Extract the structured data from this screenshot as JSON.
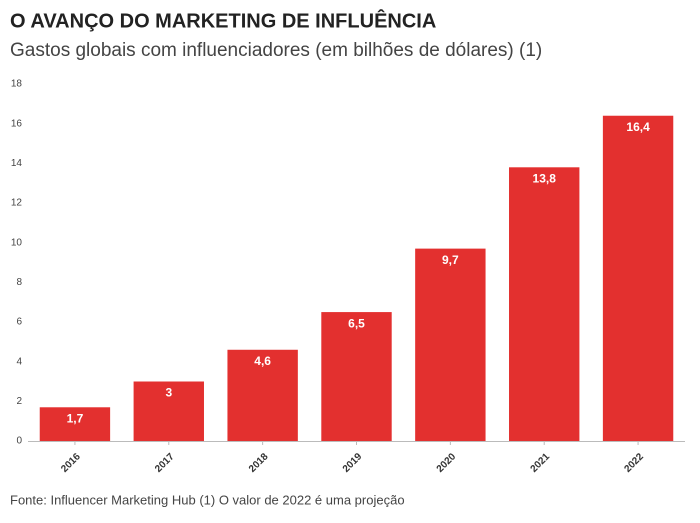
{
  "chart_data": {
    "type": "bar",
    "title": "O AVANÇO DO MARKETING DE INFLUÊNCIA",
    "subtitle": "Gastos globais com influenciadores (em bilhões de dólares) (1)",
    "source": "Fonte: Influencer Marketing Hub (1) O valor de 2022 é uma projeção",
    "categories": [
      "2016",
      "2017",
      "2018",
      "2019",
      "2020",
      "2021",
      "2022"
    ],
    "values": [
      1.7,
      3,
      4.6,
      6.5,
      9.7,
      13.8,
      16.4
    ],
    "value_labels": [
      "1,7",
      "3",
      "4,6",
      "6,5",
      "9,7",
      "13,8",
      "16,4"
    ],
    "color": "#e3302f",
    "ylim": [
      0,
      18
    ],
    "yticks": [
      0,
      2,
      4,
      6,
      8,
      10,
      12,
      14,
      16,
      18
    ],
    "grid": false
  }
}
